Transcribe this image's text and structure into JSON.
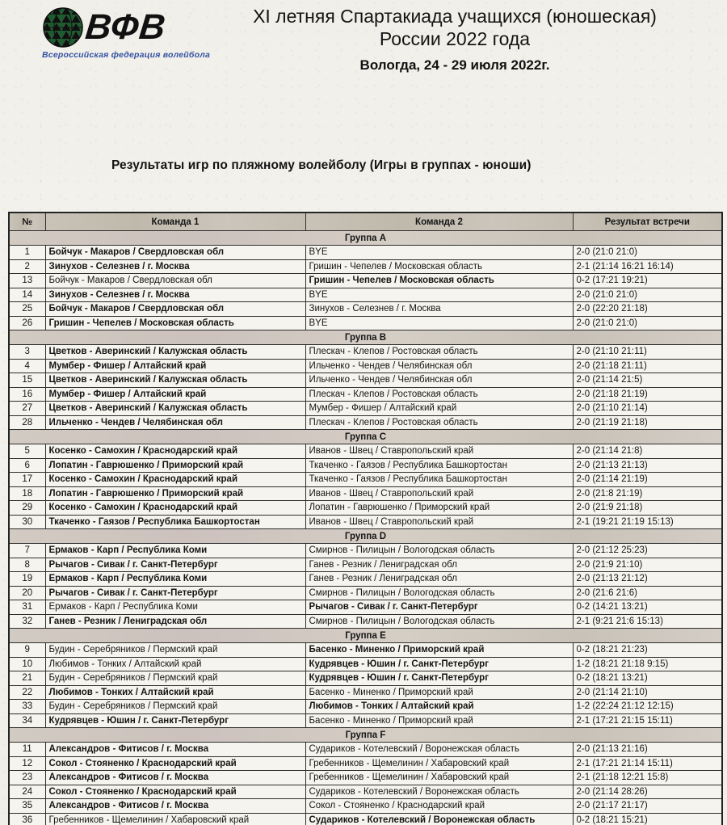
{
  "logo": {
    "acronym": "ВФВ",
    "caption": "Всероссийская федерация волейбола",
    "globe_icon": "triangulated-globe",
    "caption_color": "#3452a4"
  },
  "header": {
    "title_line1": "XI летняя Спартакиада учащихся (юношеская)",
    "title_line2": "России 2022 года",
    "event_location_date": "Вологда, 24 - 29 июля 2022г."
  },
  "section_title": "Результаты игр по пляжному волейболу  (Игры в группах - юноши)",
  "colors": {
    "table_header_bg": "#c5bfb3",
    "group_row_bg": "#d0c9c0",
    "data_row_bg": "#f6f4ee",
    "border": "#2d2d2d"
  },
  "table": {
    "headers": [
      "№",
      "Команда 1",
      "Команда 2",
      "Результат встречи"
    ],
    "groups": [
      {
        "name": "Группа A",
        "rows": [
          {
            "num": "1",
            "team1": "Бойчук - Макаров / Свердловская обл",
            "team2": "BYE",
            "result": "2-0 (21:0 21:0)",
            "winner": 1
          },
          {
            "num": "2",
            "team1": "Зинухов - Селезнев / г. Москва",
            "team2": "Гришин - Чепелев / Московская область",
            "result": "2-1 (21:14 16:21 16:14)",
            "winner": 1
          },
          {
            "num": "13",
            "team1": "Бойчук - Макаров / Свердловская обл",
            "team2": "Гришин - Чепелев / Московская область",
            "result": "0-2 (17:21 19:21)",
            "winner": 2
          },
          {
            "num": "14",
            "team1": "Зинухов - Селезнев / г. Москва",
            "team2": "BYE",
            "result": "2-0 (21:0 21:0)",
            "winner": 1
          },
          {
            "num": "25",
            "team1": "Бойчук - Макаров / Свердловская обл",
            "team2": "Зинухов - Селезнев / г. Москва",
            "result": "2-0 (22:20 21:18)",
            "winner": 1
          },
          {
            "num": "26",
            "team1": "Гришин - Чепелев / Московская область",
            "team2": "BYE",
            "result": "2-0 (21:0 21:0)",
            "winner": 1
          }
        ]
      },
      {
        "name": "Группа B",
        "rows": [
          {
            "num": "3",
            "team1": "Цветков - Аверинский / Калужская область",
            "team2": "Плескач - Клепов / Ростовская область",
            "result": "2-0 (21:10 21:11)",
            "winner": 1
          },
          {
            "num": "4",
            "team1": "Мумбер - Фишер / Алтайский край",
            "team2": "Ильченко - Чендев / Челябинская обл",
            "result": "2-0 (21:18 21:11)",
            "winner": 1
          },
          {
            "num": "15",
            "team1": "Цветков - Аверинский / Калужская область",
            "team2": "Ильченко - Чендев / Челябинская обл",
            "result": "2-0 (21:14 21:5)",
            "winner": 1
          },
          {
            "num": "16",
            "team1": "Мумбер - Фишер / Алтайский край",
            "team2": "Плескач - Клепов / Ростовская область",
            "result": "2-0 (21:18 21:19)",
            "winner": 1
          },
          {
            "num": "27",
            "team1": "Цветков - Аверинский / Калужская область",
            "team2": "Мумбер - Фишер / Алтайский край",
            "result": "2-0 (21:10 21:14)",
            "winner": 1
          },
          {
            "num": "28",
            "team1": "Ильченко - Чендев / Челябинская обл",
            "team2": "Плескач - Клепов / Ростовская область",
            "result": "2-0 (21:19 21:18)",
            "winner": 1
          }
        ]
      },
      {
        "name": "Группа C",
        "rows": [
          {
            "num": "5",
            "team1": "Косенко - Самохин / Краснодарский край",
            "team2": "Иванов - Швец / Ставропольский край",
            "result": "2-0 (21:14 21:8)",
            "winner": 1
          },
          {
            "num": "6",
            "team1": "Лопатин - Гаврюшенко / Приморский край",
            "team2": "Ткаченко - Гаязов / Республика Башкортостан",
            "result": "2-0 (21:13 21:13)",
            "winner": 1
          },
          {
            "num": "17",
            "team1": "Косенко - Самохин / Краснодарский край",
            "team2": "Ткаченко - Гаязов / Республика Башкортостан",
            "result": "2-0 (21:14 21:19)",
            "winner": 1
          },
          {
            "num": "18",
            "team1": "Лопатин - Гаврюшенко / Приморский край",
            "team2": "Иванов - Швец / Ставропольский край",
            "result": "2-0 (21:8 21:19)",
            "winner": 1
          },
          {
            "num": "29",
            "team1": "Косенко - Самохин / Краснодарский край",
            "team2": "Лопатин - Гаврюшенко / Приморский край",
            "result": "2-0 (21:9 21:18)",
            "winner": 1
          },
          {
            "num": "30",
            "team1": "Ткаченко - Гаязов / Республика Башкортостан",
            "team2": "Иванов - Швец / Ставропольский край",
            "result": "2-1 (19:21 21:19 15:13)",
            "winner": 1
          }
        ]
      },
      {
        "name": "Группа D",
        "rows": [
          {
            "num": "7",
            "team1": "Ермаков - Карп / Республика Коми",
            "team2": "Смирнов - Пилицын / Вологодская область",
            "result": "2-0 (21:12 25:23)",
            "winner": 1
          },
          {
            "num": "8",
            "team1": "Рычагов - Сивак / г. Санкт-Петербург",
            "team2": "Ганев - Резник / Лениградская обл",
            "result": "2-0 (21:9 21:10)",
            "winner": 1
          },
          {
            "num": "19",
            "team1": "Ермаков - Карп / Республика Коми",
            "team2": "Ганев - Резник / Лениградская обл",
            "result": "2-0 (21:13 21:12)",
            "winner": 1
          },
          {
            "num": "20",
            "team1": "Рычагов - Сивак / г. Санкт-Петербург",
            "team2": "Смирнов - Пилицын / Вологодская область",
            "result": "2-0 (21:6 21:6)",
            "winner": 1
          },
          {
            "num": "31",
            "team1": "Ермаков - Карп / Республика Коми",
            "team2": "Рычагов - Сивак / г. Санкт-Петербург",
            "result": "0-2 (14:21 13:21)",
            "winner": 2
          },
          {
            "num": "32",
            "team1": "Ганев - Резник / Лениградская обл",
            "team2": "Смирнов - Пилицын / Вологодская область",
            "result": "2-1 (9:21 21:6 15:13)",
            "winner": 1
          }
        ]
      },
      {
        "name": "Группа E",
        "rows": [
          {
            "num": "9",
            "team1": "Будин - Серебряников / Пермский край",
            "team2": "Басенко - Миненко / Приморский край",
            "result": "0-2 (18:21 21:23)",
            "winner": 2
          },
          {
            "num": "10",
            "team1": "Любимов - Тонких / Алтайский край",
            "team2": "Кудрявцев - Юшин / г. Санкт-Петербург",
            "result": "1-2 (18:21 21:18 9:15)",
            "winner": 2
          },
          {
            "num": "21",
            "team1": "Будин - Серебряников / Пермский край",
            "team2": "Кудрявцев - Юшин / г. Санкт-Петербург",
            "result": "0-2 (18:21 13:21)",
            "winner": 2
          },
          {
            "num": "22",
            "team1": "Любимов - Тонких / Алтайский край",
            "team2": "Басенко - Миненко / Приморский край",
            "result": "2-0 (21:14 21:10)",
            "winner": 1
          },
          {
            "num": "33",
            "team1": "Будин - Серебряников / Пермский край",
            "team2": "Любимов - Тонких / Алтайский край",
            "result": "1-2 (22:24 21:12 12:15)",
            "winner": 2
          },
          {
            "num": "34",
            "team1": "Кудрявцев - Юшин / г. Санкт-Петербург",
            "team2": "Басенко - Миненко / Приморский край",
            "result": "2-1 (17:21 21:15 15:11)",
            "winner": 1
          }
        ]
      },
      {
        "name": "Группа F",
        "rows": [
          {
            "num": "11",
            "team1": "Александров - Фитисов / г. Москва",
            "team2": "Судариков - Котелевский / Воронежская область",
            "result": "2-0 (21:13 21:16)",
            "winner": 1
          },
          {
            "num": "12",
            "team1": "Сокол - Стояненко / Краснодарский край",
            "team2": "Гребенников - Щемелинин / Хабаровский край",
            "result": "2-1 (17:21 21:14 15:11)",
            "winner": 1
          },
          {
            "num": "23",
            "team1": "Александров - Фитисов / г. Москва",
            "team2": "Гребенников - Щемелинин / Хабаровский край",
            "result": "2-1 (21:18 12:21 15:8)",
            "winner": 1
          },
          {
            "num": "24",
            "team1": "Сокол - Стояненко / Краснодарский край",
            "team2": "Судариков - Котелевский / Воронежская область",
            "result": "2-0 (21:14 28:26)",
            "winner": 1
          },
          {
            "num": "35",
            "team1": "Александров - Фитисов / г. Москва",
            "team2": "Сокол - Стояненко / Краснодарский край",
            "result": "2-0 (21:17 21:17)",
            "winner": 1
          },
          {
            "num": "36",
            "team1": "Гребенников - Щемелинин / Хабаровский край",
            "team2": "Судариков - Котелевский / Воронежская область",
            "result": "0-2 (18:21 15:21)",
            "winner": 2
          }
        ]
      }
    ]
  }
}
